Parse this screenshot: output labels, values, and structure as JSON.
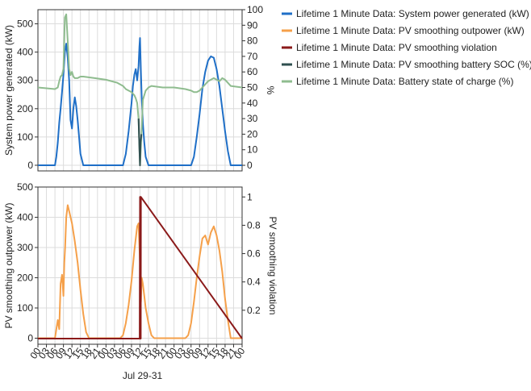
{
  "colors": {
    "system_power": "#1f6fc7",
    "pv_outpower": "#f5a04a",
    "violation": "#8b1a1a",
    "battery_soc": "#2f4f4f",
    "battery_charge": "#8fbc8f",
    "grid": "#dcdcdc",
    "axis": "#333333"
  },
  "legend": [
    {
      "label": "Lifetime 1 Minute Data: System power generated (kW)",
      "color_key": "system_power"
    },
    {
      "label": "Lifetime 1 Minute Data: PV smoothing outpower (kW)",
      "color_key": "pv_outpower"
    },
    {
      "label": "Lifetime 1 Minute Data: PV smoothing violation",
      "color_key": "violation"
    },
    {
      "label": "Lifetime 1 Minute Data: PV smoothing battery SOC (%)",
      "color_key": "battery_soc"
    },
    {
      "label": "Lifetime 1 Minute Data: Battery state of charge (%)",
      "color_key": "battery_charge"
    }
  ],
  "chart_data": [
    {
      "type": "line",
      "ylabel": "System power generated (kW)",
      "y2label": "%",
      "ylim": [
        -20,
        550
      ],
      "y2lim": [
        -3.6,
        100
      ],
      "yticks": [
        0,
        100,
        200,
        300,
        400,
        500
      ],
      "y2ticks": [
        0,
        10,
        20,
        30,
        40,
        50,
        60,
        70,
        80,
        90,
        100
      ],
      "xlim": [
        0,
        72
      ],
      "grid": true,
      "series": [
        {
          "name": "Lifetime 1 Minute Data: System power generated (kW)",
          "axis": "left",
          "color_key": "system_power",
          "x": [
            0,
            3,
            6,
            6.5,
            7,
            7.5,
            8,
            8.5,
            9,
            9.5,
            10,
            10.5,
            11,
            11.5,
            12,
            12.5,
            13,
            13.5,
            14,
            14.5,
            15,
            16,
            17,
            18,
            19,
            24,
            30,
            31,
            32,
            33,
            33.5,
            34,
            34.5,
            35,
            35.5,
            35.8,
            36,
            36.3,
            36.6,
            37,
            37.5,
            38,
            39,
            40,
            41,
            43,
            48,
            54,
            55,
            56,
            57,
            58,
            59,
            60,
            61,
            62,
            63,
            64,
            65,
            66,
            67,
            68,
            72
          ],
          "y": [
            0,
            0,
            0,
            30,
            80,
            150,
            200,
            260,
            320,
            400,
            430,
            380,
            300,
            160,
            130,
            200,
            240,
            210,
            160,
            100,
            40,
            0,
            0,
            0,
            0,
            0,
            0,
            40,
            120,
            220,
            280,
            320,
            340,
            300,
            350,
            420,
            450,
            330,
            240,
            150,
            80,
            30,
            0,
            0,
            0,
            0,
            0,
            0,
            30,
            100,
            180,
            270,
            330,
            370,
            385,
            380,
            340,
            280,
            200,
            120,
            50,
            0,
            0
          ]
        },
        {
          "name": "Lifetime 1 Minute Data: Battery state of charge (%)",
          "axis": "right",
          "color_key": "battery_charge",
          "x": [
            0,
            6,
            7,
            7.5,
            8,
            8.5,
            9,
            9.5,
            10,
            10.5,
            11,
            11.5,
            12,
            12.5,
            13,
            14,
            15,
            16,
            20,
            24,
            28,
            30,
            31,
            32,
            33,
            34,
            34.5,
            35,
            35.5,
            36,
            36.5,
            37,
            38,
            39,
            40,
            44,
            48,
            52,
            54,
            55,
            56,
            57,
            58,
            59,
            60,
            61,
            62,
            63,
            64,
            65,
            66,
            68,
            72
          ],
          "y": [
            50,
            49,
            50,
            54,
            57,
            58,
            62,
            95,
            97,
            80,
            62,
            58,
            60,
            57,
            56,
            56,
            57,
            57,
            56,
            55,
            53,
            51,
            49,
            48,
            47,
            45,
            43,
            40,
            30,
            0,
            20,
            42,
            48,
            50,
            51,
            50,
            50,
            49,
            48,
            47,
            47,
            48,
            50,
            52,
            54,
            55,
            56,
            55,
            54,
            56,
            55,
            51,
            50
          ]
        },
        {
          "name": "Lifetime 1 Minute Data: PV smoothing battery SOC (%)",
          "axis": "right",
          "color_key": "battery_soc",
          "x": [
            35.5,
            35.8,
            36,
            36.2,
            36.5
          ],
          "y": [
            30,
            10,
            0,
            15,
            20
          ]
        }
      ]
    },
    {
      "type": "line",
      "xlabel": "Jul 29-31",
      "ylabel": "PV smoothing outpower (kW)",
      "y2label": "PV smoothing violation",
      "ylim": [
        -20,
        500
      ],
      "y2lim": [
        -0.04,
        1.07
      ],
      "yticks": [
        0,
        100,
        200,
        300,
        400,
        500
      ],
      "y2ticks": [
        0.2,
        0.4,
        0.6,
        0.8,
        1
      ],
      "y2ticklabels": [
        "0.2",
        "0.4",
        "0.6",
        "0.8",
        "1"
      ],
      "xlim": [
        0,
        72
      ],
      "xticks": [
        0,
        3,
        6,
        9,
        12,
        15,
        18,
        21,
        24,
        27,
        30,
        33,
        36,
        39,
        42,
        45,
        48,
        51,
        54,
        57,
        60,
        63,
        66,
        69,
        72
      ],
      "xticklabels": [
        "00",
        "03",
        "06",
        "09",
        "12",
        "15",
        "18",
        "21",
        "00",
        "03",
        "06",
        "09",
        "12",
        "15",
        "18",
        "21",
        "00",
        "03",
        "06",
        "09",
        "12",
        "15",
        "18",
        "21",
        "00"
      ],
      "grid": true,
      "series": [
        {
          "name": "Lifetime 1 Minute Data: PV smoothing outpower (kW)",
          "axis": "left",
          "color_key": "pv_outpower",
          "x": [
            0,
            3,
            6,
            7,
            7.5,
            8,
            8.5,
            9,
            9.3,
            9.6,
            10,
            10.5,
            11,
            12,
            13,
            14,
            15,
            16,
            17,
            18,
            24,
            29,
            30,
            31,
            32,
            33,
            34,
            35,
            35.5,
            36,
            36.3,
            36.6,
            37,
            37.5,
            38,
            39,
            40,
            41,
            42,
            48,
            52,
            53,
            54,
            55,
            56,
            57,
            58,
            59,
            60,
            61,
            62,
            63,
            64,
            65,
            66,
            67,
            68,
            72
          ],
          "y": [
            0,
            0,
            0,
            60,
            30,
            180,
            210,
            140,
            250,
            300,
            400,
            440,
            420,
            380,
            320,
            250,
            160,
            80,
            20,
            0,
            0,
            0,
            10,
            50,
            110,
            190,
            290,
            370,
            380,
            250,
            120,
            200,
            180,
            140,
            100,
            50,
            10,
            0,
            0,
            0,
            0,
            10,
            50,
            120,
            200,
            270,
            330,
            340,
            310,
            350,
            370,
            340,
            290,
            220,
            130,
            60,
            0,
            0
          ]
        },
        {
          "name": "Lifetime 1 Minute Data: PV smoothing violation",
          "axis": "right",
          "color_key": "violation",
          "x": [
            0,
            35.9,
            36,
            36.05,
            36.1,
            36.2,
            36.25,
            36.3,
            72
          ],
          "y": [
            0,
            0,
            1,
            0,
            1,
            1,
            0,
            1,
            0
          ]
        }
      ]
    }
  ]
}
